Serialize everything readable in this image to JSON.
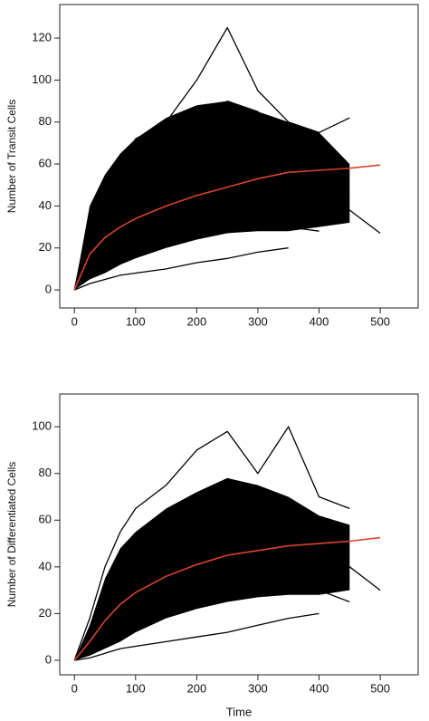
{
  "chart_data": [
    {
      "type": "line",
      "ylabel": "Number of Transit Cells",
      "x": [
        0,
        25,
        50,
        75,
        100,
        150,
        200,
        250,
        300,
        350,
        400,
        450,
        500
      ],
      "xlim": [
        -24,
        562
      ],
      "xticks": [
        0,
        100,
        200,
        300,
        400,
        500
      ],
      "ylim": [
        -8.6,
        136
      ],
      "yticks": [
        0,
        20,
        40,
        60,
        80,
        100,
        120
      ],
      "band": {
        "color": "#000000",
        "lower": [
          0,
          5,
          8,
          12,
          15,
          20,
          24,
          27,
          28,
          28,
          30,
          32,
          null
        ],
        "upper": [
          0,
          40,
          55,
          65,
          72,
          82,
          88,
          90,
          85,
          80,
          75,
          60,
          null
        ]
      },
      "series": [
        {
          "color": "#000000",
          "values": [
            0,
            35,
            50,
            60,
            72,
            80,
            100,
            125,
            95,
            80,
            75,
            82,
            null
          ]
        },
        {
          "color": "#000000",
          "values": [
            0,
            25,
            40,
            48,
            55,
            65,
            75,
            90,
            85,
            70,
            60,
            55,
            null
          ]
        },
        {
          "color": "#000000",
          "values": [
            0,
            15,
            22,
            28,
            35,
            45,
            55,
            60,
            58,
            52,
            48,
            45,
            null
          ]
        },
        {
          "color": "#000000",
          "values": [
            0,
            12,
            18,
            24,
            28,
            35,
            40,
            45,
            48,
            44,
            40,
            38,
            27
          ]
        },
        {
          "color": "#000000",
          "values": [
            0,
            8,
            12,
            16,
            20,
            24,
            28,
            30,
            32,
            30,
            28,
            null,
            null
          ]
        },
        {
          "color": "#000000",
          "values": [
            0,
            3,
            5,
            7,
            8,
            10,
            13,
            15,
            18,
            20,
            null,
            null,
            null
          ]
        },
        {
          "color": "#d9442c",
          "values": [
            0,
            17,
            25,
            30,
            34,
            40,
            45,
            49,
            53,
            56,
            57,
            58,
            59.5
          ]
        }
      ]
    },
    {
      "type": "line",
      "ylabel": "Number of Differentiated Cells",
      "xlabel": "Time",
      "x": [
        0,
        25,
        50,
        75,
        100,
        150,
        200,
        250,
        300,
        350,
        400,
        450,
        500
      ],
      "xlim": [
        -24,
        562
      ],
      "xticks": [
        0,
        100,
        200,
        300,
        400,
        500
      ],
      "ylim": [
        -6.2,
        114
      ],
      "yticks": [
        0,
        20,
        40,
        60,
        80,
        100
      ],
      "band": {
        "color": "#000000",
        "lower": [
          0,
          2,
          5,
          8,
          12,
          18,
          22,
          25,
          27,
          28,
          28,
          30,
          null
        ],
        "upper": [
          0,
          15,
          35,
          48,
          55,
          65,
          72,
          78,
          75,
          70,
          62,
          58,
          null
        ]
      },
      "series": [
        {
          "color": "#000000",
          "values": [
            0,
            18,
            40,
            55,
            65,
            75,
            90,
            98,
            80,
            100,
            70,
            65,
            null
          ]
        },
        {
          "color": "#000000",
          "values": [
            0,
            10,
            25,
            35,
            45,
            55,
            60,
            65,
            70,
            60,
            50,
            55,
            null
          ]
        },
        {
          "color": "#000000",
          "values": [
            0,
            5,
            15,
            22,
            30,
            40,
            45,
            50,
            45,
            40,
            45,
            40,
            30
          ]
        },
        {
          "color": "#000000",
          "values": [
            0,
            3,
            8,
            12,
            18,
            25,
            30,
            35,
            38,
            35,
            30,
            25,
            null
          ]
        },
        {
          "color": "#000000",
          "values": [
            0,
            1,
            3,
            5,
            6,
            8,
            10,
            12,
            15,
            18,
            20,
            null,
            null
          ]
        },
        {
          "color": "#d9442c",
          "values": [
            0,
            8,
            17,
            24,
            29,
            36,
            41,
            45,
            47,
            49,
            50,
            51,
            52.5
          ]
        }
      ]
    }
  ]
}
